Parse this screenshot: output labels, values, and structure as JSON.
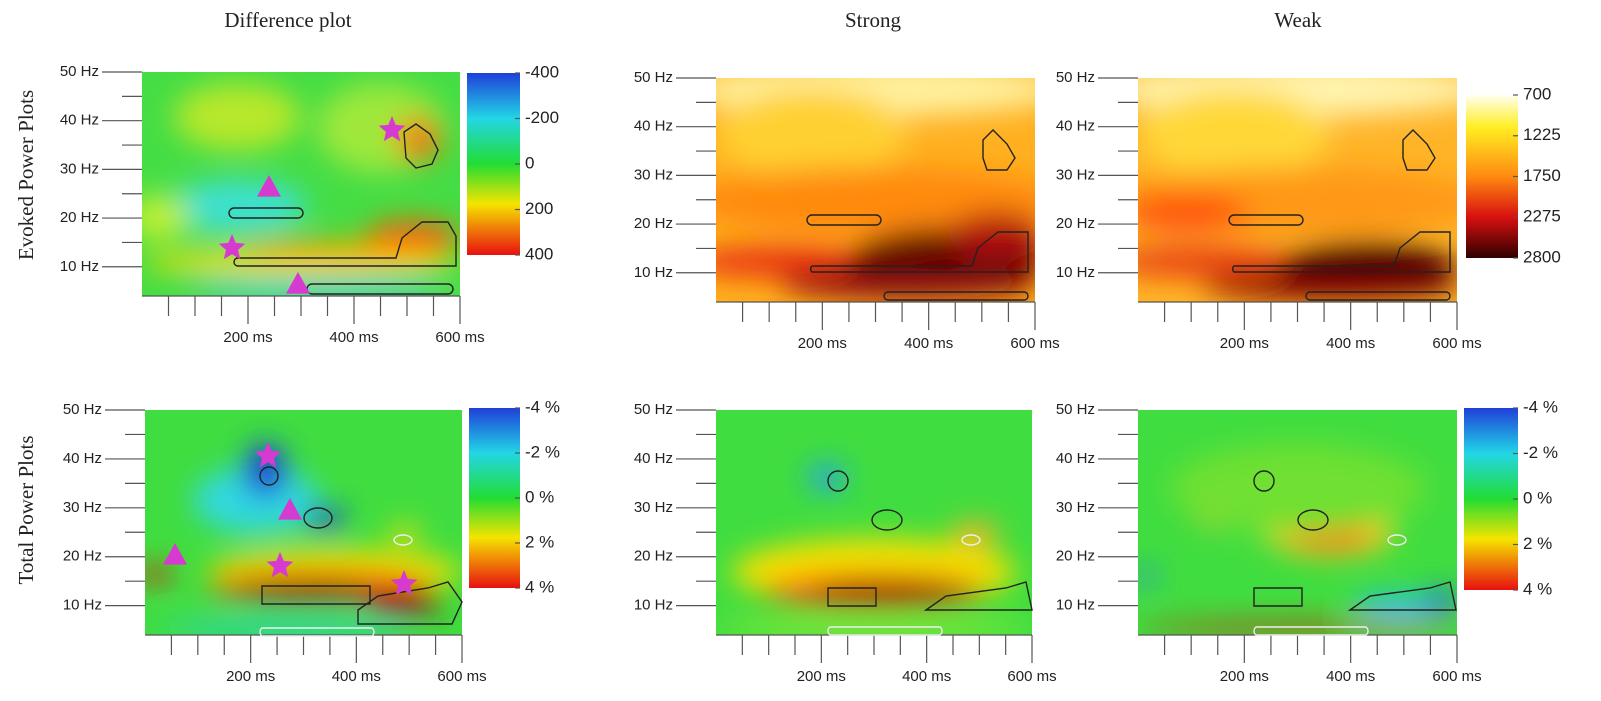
{
  "column_titles": [
    "Difference plot",
    "Strong",
    "Weak"
  ],
  "row_labels": [
    "Evoked Power Plots",
    "Total Power Plots"
  ],
  "chart_data": [
    {
      "type": "heatmap",
      "xlim": [
        0,
        600
      ],
      "ylim": [
        4,
        50
      ],
      "xticks": [
        {
          "value": 200,
          "label": "200 ms"
        },
        {
          "value": 400,
          "label": "400 ms"
        },
        {
          "value": 600,
          "label": "600 ms"
        }
      ],
      "yticks": [
        {
          "value": 10,
          "label": "10 Hz"
        },
        {
          "value": 20,
          "label": "20 Hz"
        },
        {
          "value": 30,
          "label": "30 Hz"
        },
        {
          "value": 40,
          "label": "40 Hz"
        },
        {
          "value": 50,
          "label": "50 Hz"
        }
      ],
      "colorbar": {
        "clim": [
          -400,
          400
        ],
        "cticks": [
          -400,
          -200,
          0,
          200,
          400
        ]
      }
    },
    {
      "type": "heatmap",
      "xlim": [
        0,
        600
      ],
      "ylim": [
        4,
        50
      ],
      "xticks": [
        {
          "value": 200,
          "label": "200 ms"
        },
        {
          "value": 400,
          "label": "400 ms"
        },
        {
          "value": 600,
          "label": "600 ms"
        }
      ],
      "yticks": [
        {
          "value": 10,
          "label": "10 Hz"
        },
        {
          "value": 20,
          "label": "20 Hz"
        },
        {
          "value": 30,
          "label": "30 Hz"
        },
        {
          "value": 40,
          "label": "40 Hz"
        },
        {
          "value": 50,
          "label": "50 Hz"
        }
      ]
    },
    {
      "type": "heatmap",
      "xlim": [
        0,
        600
      ],
      "ylim": [
        4,
        50
      ],
      "xticks": [
        {
          "value": 200,
          "label": "200 ms"
        },
        {
          "value": 400,
          "label": "400 ms"
        },
        {
          "value": 600,
          "label": "600 ms"
        }
      ],
      "yticks": [
        {
          "value": 10,
          "label": "10 Hz"
        },
        {
          "value": 20,
          "label": "20 Hz"
        },
        {
          "value": 30,
          "label": "30 Hz"
        },
        {
          "value": 40,
          "label": "40 Hz"
        },
        {
          "value": 50,
          "label": "50 Hz"
        }
      ],
      "colorbar": {
        "clim": [
          700,
          2800
        ],
        "cticks": [
          700,
          1225,
          1750,
          2275,
          2800
        ]
      }
    },
    {
      "type": "heatmap",
      "xlim": [
        0,
        600
      ],
      "ylim": [
        4,
        50
      ],
      "xticks": [
        {
          "value": 200,
          "label": "200 ms"
        },
        {
          "value": 400,
          "label": "400 ms"
        },
        {
          "value": 600,
          "label": "600 ms"
        }
      ],
      "yticks": [
        {
          "value": 10,
          "label": "10 Hz"
        },
        {
          "value": 20,
          "label": "20 Hz"
        },
        {
          "value": 30,
          "label": "30 Hz"
        },
        {
          "value": 40,
          "label": "40 Hz"
        },
        {
          "value": 50,
          "label": "50 Hz"
        }
      ],
      "colorbar": {
        "clim": [
          -4,
          4
        ],
        "cticks": [
          {
            "value": -4,
            "label": "-4 %"
          },
          {
            "value": -2,
            "label": "-2 %"
          },
          {
            "value": 0,
            "label": "0 %"
          },
          {
            "value": 2,
            "label": "2 %"
          },
          {
            "value": 4,
            "label": "4 %"
          }
        ]
      }
    },
    {
      "type": "heatmap",
      "xlim": [
        0,
        600
      ],
      "ylim": [
        4,
        50
      ],
      "xticks": [
        {
          "value": 200,
          "label": "200 ms"
        },
        {
          "value": 400,
          "label": "400 ms"
        },
        {
          "value": 600,
          "label": "600 ms"
        }
      ],
      "yticks": [
        {
          "value": 10,
          "label": "10 Hz"
        },
        {
          "value": 20,
          "label": "20 Hz"
        },
        {
          "value": 30,
          "label": "30 Hz"
        },
        {
          "value": 40,
          "label": "40 Hz"
        },
        {
          "value": 50,
          "label": "50 Hz"
        }
      ]
    },
    {
      "type": "heatmap",
      "xlim": [
        0,
        600
      ],
      "ylim": [
        4,
        50
      ],
      "xticks": [
        {
          "value": 200,
          "label": "200 ms"
        },
        {
          "value": 400,
          "label": "400 ms"
        },
        {
          "value": 600,
          "label": "600 ms"
        }
      ],
      "yticks": [
        {
          "value": 10,
          "label": "10 Hz"
        },
        {
          "value": 20,
          "label": "20 Hz"
        },
        {
          "value": 30,
          "label": "30 Hz"
        },
        {
          "value": 40,
          "label": "40 Hz"
        },
        {
          "value": 50,
          "label": "50 Hz"
        }
      ],
      "colorbar": {
        "clim": [
          -4,
          4
        ],
        "cticks": [
          {
            "value": -4,
            "label": "-4 %"
          },
          {
            "value": -2,
            "label": "-2 %"
          },
          {
            "value": 0,
            "label": "0 %"
          },
          {
            "value": 2,
            "label": "2 %"
          },
          {
            "value": 4,
            "label": "4 %"
          }
        ]
      }
    }
  ]
}
